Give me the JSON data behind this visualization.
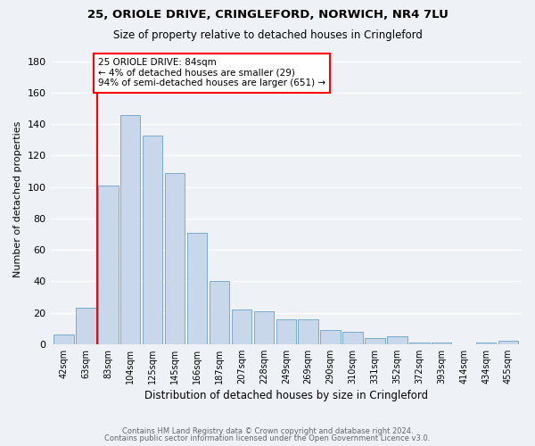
{
  "title1": "25, ORIOLE DRIVE, CRINGLEFORD, NORWICH, NR4 7LU",
  "title2": "Size of property relative to detached houses in Cringleford",
  "xlabel": "Distribution of detached houses by size in Cringleford",
  "ylabel": "Number of detached properties",
  "categories": [
    "42sqm",
    "63sqm",
    "83sqm",
    "104sqm",
    "125sqm",
    "145sqm",
    "166sqm",
    "187sqm",
    "207sqm",
    "228sqm",
    "249sqm",
    "269sqm",
    "290sqm",
    "310sqm",
    "331sqm",
    "352sqm",
    "372sqm",
    "393sqm",
    "414sqm",
    "434sqm",
    "455sqm"
  ],
  "values": [
    6,
    23,
    101,
    146,
    133,
    109,
    71,
    40,
    22,
    21,
    16,
    16,
    9,
    8,
    4,
    5,
    1,
    1,
    0,
    1,
    2
  ],
  "bar_color": "#c8d8ea",
  "bar_edge_color": "#7aaaca",
  "property_line_bin": 1.5,
  "annotation_line1": "25 ORIOLE DRIVE: 84sqm",
  "annotation_line2": "← 4% of detached houses are smaller (29)",
  "annotation_line3": "94% of semi-detached houses are larger (651) →",
  "annotation_box_color": "white",
  "annotation_box_edge_color": "red",
  "vline_color": "red",
  "footer1": "Contains HM Land Registry data © Crown copyright and database right 2024.",
  "footer2": "Contains public sector information licensed under the Open Government Licence v3.0.",
  "ylim": [
    0,
    185
  ],
  "yticks": [
    0,
    20,
    40,
    60,
    80,
    100,
    120,
    140,
    160,
    180
  ],
  "background_color": "#eef2f7",
  "grid_color": "#ffffff"
}
